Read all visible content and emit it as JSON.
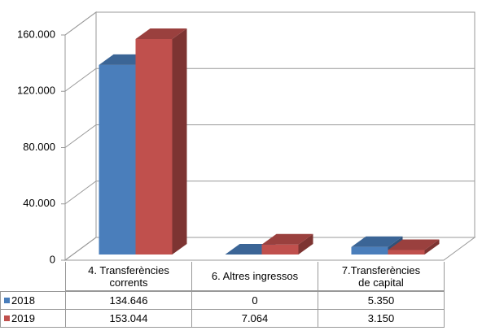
{
  "chart_data": {
    "type": "bar3d",
    "categories": [
      "4. Transferències corrents",
      "6. Altres ingressos",
      "7.Transferències de capital"
    ],
    "series": [
      {
        "name": "2018",
        "color": "#4a7ebb",
        "values": [
          134646,
          0,
          5350
        ],
        "value_labels": [
          "134.646",
          "0",
          "5.350"
        ]
      },
      {
        "name": "2019",
        "color": "#c0504d",
        "values": [
          153044,
          7064,
          3150
        ],
        "value_labels": [
          "153.044",
          "7.064",
          "3.150"
        ]
      }
    ],
    "ylim": [
      0,
      160000
    ],
    "yticks": [
      0,
      {
        "value": 40000,
        "label": "40.000"
      },
      {
        "value": 80000,
        "label": "80.000"
      },
      {
        "value": 120000,
        "label": "120.000"
      },
      {
        "value": 160000,
        "label": "160.000"
      }
    ],
    "grid": true
  }
}
